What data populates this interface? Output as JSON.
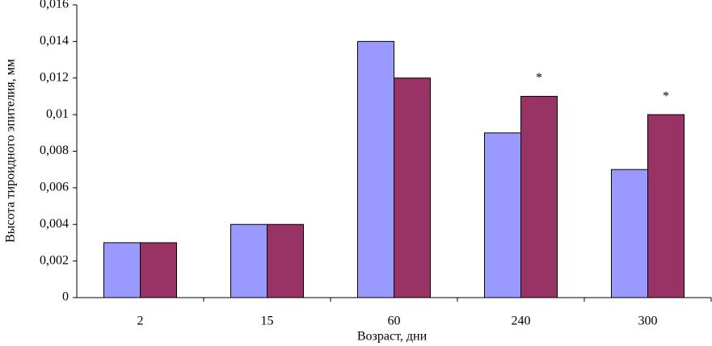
{
  "chart_data": {
    "type": "bar",
    "y_label": "Высота тироидного эпителия, мм",
    "x_label": "Возраст, дни",
    "categories": [
      "2",
      "15",
      "60",
      "240",
      "300"
    ],
    "series": [
      {
        "color": "#9999ff",
        "values": [
          0.003,
          0.004,
          0.014,
          0.009,
          0.007
        ]
      },
      {
        "color": "#993366",
        "values": [
          0.003,
          0.004,
          0.012,
          0.011,
          0.01
        ]
      }
    ],
    "annotations": [
      {
        "text": "*",
        "category": "240",
        "series": 1
      },
      {
        "text": "*",
        "category": "300",
        "series": 1
      }
    ],
    "ylim": [
      0,
      0.016
    ],
    "yticks": [
      0,
      {
        "value": 0.002,
        "label": "0,002"
      },
      {
        "value": 0.004,
        "label": "0,004"
      },
      {
        "value": 0.006,
        "label": "0,006"
      },
      {
        "value": 0.008,
        "label": "0,008"
      },
      {
        "value": 0.01,
        "label": "0,01"
      },
      {
        "value": 0.012,
        "label": "0,012"
      },
      {
        "value": 0.014,
        "label": "0,014"
      },
      {
        "value": 0.016,
        "label": "0,016"
      }
    ],
    "grid": false
  }
}
